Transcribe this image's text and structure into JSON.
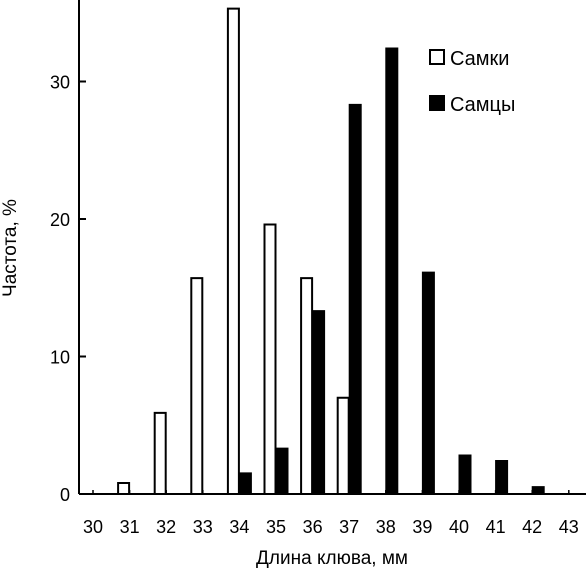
{
  "chart_data": {
    "type": "bar",
    "xlabel": "Длина клюва, мм",
    "ylabel": "Частота, %",
    "categories": [
      "30",
      "31",
      "32",
      "33",
      "34",
      "35",
      "36",
      "37",
      "38",
      "39",
      "40",
      "41",
      "42",
      "43"
    ],
    "ylim": [
      0,
      36
    ],
    "yticks": [
      0,
      10,
      20,
      30
    ],
    "grid": false,
    "legend_position": "top-right",
    "series": [
      {
        "name": "Самки",
        "fill": "#ffffff",
        "stroke": "#000000",
        "values": [
          0,
          0.8,
          5.9,
          15.7,
          35.3,
          19.6,
          15.7,
          7.0,
          0,
          0,
          0,
          0,
          0,
          0
        ]
      },
      {
        "name": "Самцы",
        "fill": "#000000",
        "stroke": "#000000",
        "values": [
          0,
          0,
          0,
          0,
          1.5,
          3.3,
          13.3,
          28.3,
          32.4,
          16.1,
          2.8,
          2.4,
          0.5,
          0
        ]
      }
    ]
  }
}
